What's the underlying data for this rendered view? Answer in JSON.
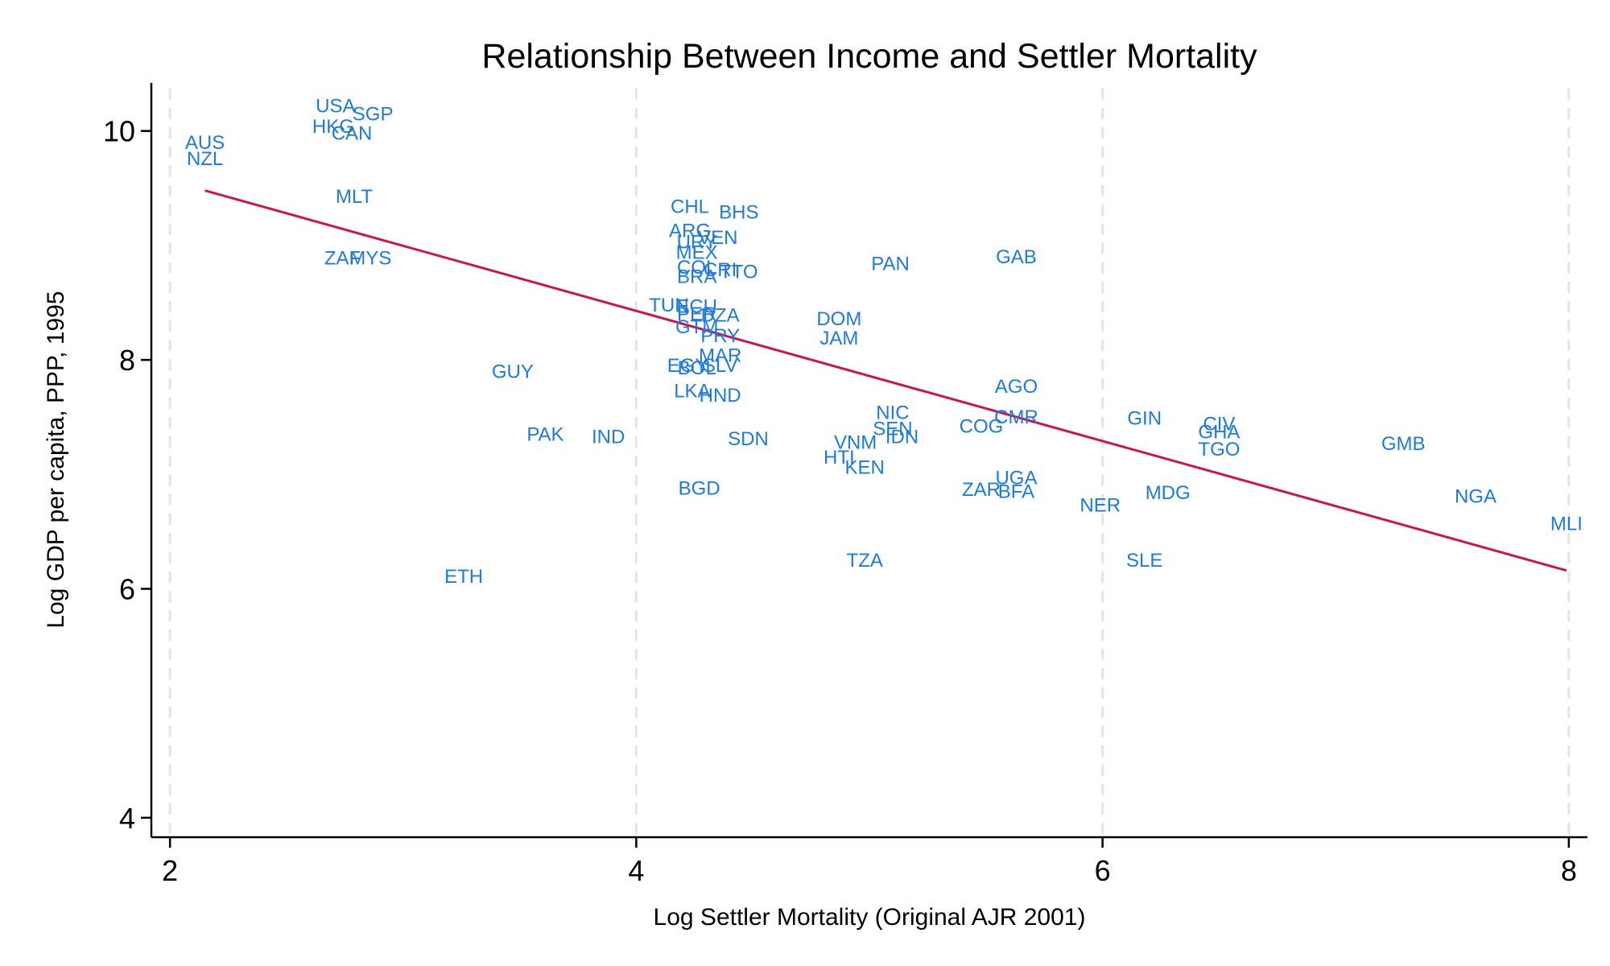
{
  "chart_data": {
    "type": "scatter",
    "title": "Relationship Between Income and Settler Mortality",
    "xlabel": "Log Settler Mortality (Original AJR 2001)",
    "ylabel": "Log GDP per capita, PPP, 1995",
    "xlim": [
      1.92,
      8.08
    ],
    "ylim": [
      3.83,
      10.42
    ],
    "xticks": [
      2,
      4,
      6,
      8
    ],
    "yticks": [
      4,
      6,
      8,
      10
    ],
    "xgrid": true,
    "ygrid": false,
    "label_color": "#1f7ae0",
    "fit_color": "#c8174f",
    "points": [
      {
        "label": "USA",
        "x": 2.71,
        "y": 10.22
      },
      {
        "label": "SGP",
        "x": 2.87,
        "y": 10.15
      },
      {
        "label": "HKG",
        "x": 2.7,
        "y": 10.04
      },
      {
        "label": "CAN",
        "x": 2.78,
        "y": 9.98
      },
      {
        "label": "AUS",
        "x": 2.15,
        "y": 9.9
      },
      {
        "label": "NZL",
        "x": 2.15,
        "y": 9.76
      },
      {
        "label": "MLT",
        "x": 2.79,
        "y": 9.43
      },
      {
        "label": "ZAF",
        "x": 2.74,
        "y": 8.89
      },
      {
        "label": "MYS",
        "x": 2.86,
        "y": 8.89
      },
      {
        "label": "GUY",
        "x": 3.47,
        "y": 7.9
      },
      {
        "label": "PAK",
        "x": 3.61,
        "y": 7.35
      },
      {
        "label": "IND",
        "x": 3.88,
        "y": 7.33
      },
      {
        "label": "ETH",
        "x": 3.26,
        "y": 6.11
      },
      {
        "label": "CHL",
        "x": 4.23,
        "y": 9.34
      },
      {
        "label": "BHS",
        "x": 4.44,
        "y": 9.29
      },
      {
        "label": "ARG",
        "x": 4.23,
        "y": 9.13
      },
      {
        "label": "URY",
        "x": 4.26,
        "y": 9.03
      },
      {
        "label": "VEN",
        "x": 4.35,
        "y": 9.07
      },
      {
        "label": "MEX",
        "x": 4.26,
        "y": 8.94
      },
      {
        "label": "COL",
        "x": 4.26,
        "y": 8.81
      },
      {
        "label": "CRI",
        "x": 4.36,
        "y": 8.79
      },
      {
        "label": "TTO",
        "x": 4.44,
        "y": 8.77
      },
      {
        "label": "BRA",
        "x": 4.26,
        "y": 8.73
      },
      {
        "label": "PAN",
        "x": 5.09,
        "y": 8.84
      },
      {
        "label": "GAB",
        "x": 5.63,
        "y": 8.9
      },
      {
        "label": "TUN",
        "x": 4.14,
        "y": 8.48
      },
      {
        "label": "ECU",
        "x": 4.26,
        "y": 8.47
      },
      {
        "label": "PER",
        "x": 4.26,
        "y": 8.4
      },
      {
        "label": "DZA",
        "x": 4.36,
        "y": 8.39
      },
      {
        "label": "GTM",
        "x": 4.26,
        "y": 8.29
      },
      {
        "label": "PRY",
        "x": 4.36,
        "y": 8.21
      },
      {
        "label": "DOM",
        "x": 4.87,
        "y": 8.36
      },
      {
        "label": "JAM",
        "x": 4.87,
        "y": 8.19
      },
      {
        "label": "MAR",
        "x": 4.36,
        "y": 8.04
      },
      {
        "label": "EGY",
        "x": 4.22,
        "y": 7.95
      },
      {
        "label": "BOL",
        "x": 4.26,
        "y": 7.93
      },
      {
        "label": "SLV",
        "x": 4.36,
        "y": 7.95
      },
      {
        "label": "LKA",
        "x": 4.24,
        "y": 7.73
      },
      {
        "label": "HND",
        "x": 4.36,
        "y": 7.69
      },
      {
        "label": "SDN",
        "x": 4.48,
        "y": 7.31
      },
      {
        "label": "BGD",
        "x": 4.27,
        "y": 6.88
      },
      {
        "label": "NIC",
        "x": 5.1,
        "y": 7.54
      },
      {
        "label": "SEN",
        "x": 5.1,
        "y": 7.4
      },
      {
        "label": "IDN",
        "x": 5.14,
        "y": 7.33
      },
      {
        "label": "VNM",
        "x": 4.94,
        "y": 7.28
      },
      {
        "label": "HTI",
        "x": 4.87,
        "y": 7.15
      },
      {
        "label": "KEN",
        "x": 4.98,
        "y": 7.06
      },
      {
        "label": "TZA",
        "x": 4.98,
        "y": 6.25
      },
      {
        "label": "AGO",
        "x": 5.63,
        "y": 7.77
      },
      {
        "label": "CMR",
        "x": 5.63,
        "y": 7.5
      },
      {
        "label": "COG",
        "x": 5.48,
        "y": 7.42
      },
      {
        "label": "UGA",
        "x": 5.63,
        "y": 6.97
      },
      {
        "label": "ZAR",
        "x": 5.48,
        "y": 6.87
      },
      {
        "label": "BFA",
        "x": 5.63,
        "y": 6.85
      },
      {
        "label": "GIN",
        "x": 6.18,
        "y": 7.49
      },
      {
        "label": "CIV",
        "x": 6.5,
        "y": 7.44
      },
      {
        "label": "GHA",
        "x": 6.5,
        "y": 7.37
      },
      {
        "label": "TGO",
        "x": 6.5,
        "y": 7.22
      },
      {
        "label": "NER",
        "x": 5.99,
        "y": 6.73
      },
      {
        "label": "MDG",
        "x": 6.28,
        "y": 6.84
      },
      {
        "label": "SLE",
        "x": 6.18,
        "y": 6.25
      },
      {
        "label": "GMB",
        "x": 7.29,
        "y": 7.27
      },
      {
        "label": "NGA",
        "x": 7.6,
        "y": 6.81
      },
      {
        "label": "MLI",
        "x": 7.99,
        "y": 6.57
      }
    ],
    "fit_line": {
      "x": [
        2.15,
        7.99
      ],
      "y": [
        9.48,
        6.16
      ]
    }
  }
}
